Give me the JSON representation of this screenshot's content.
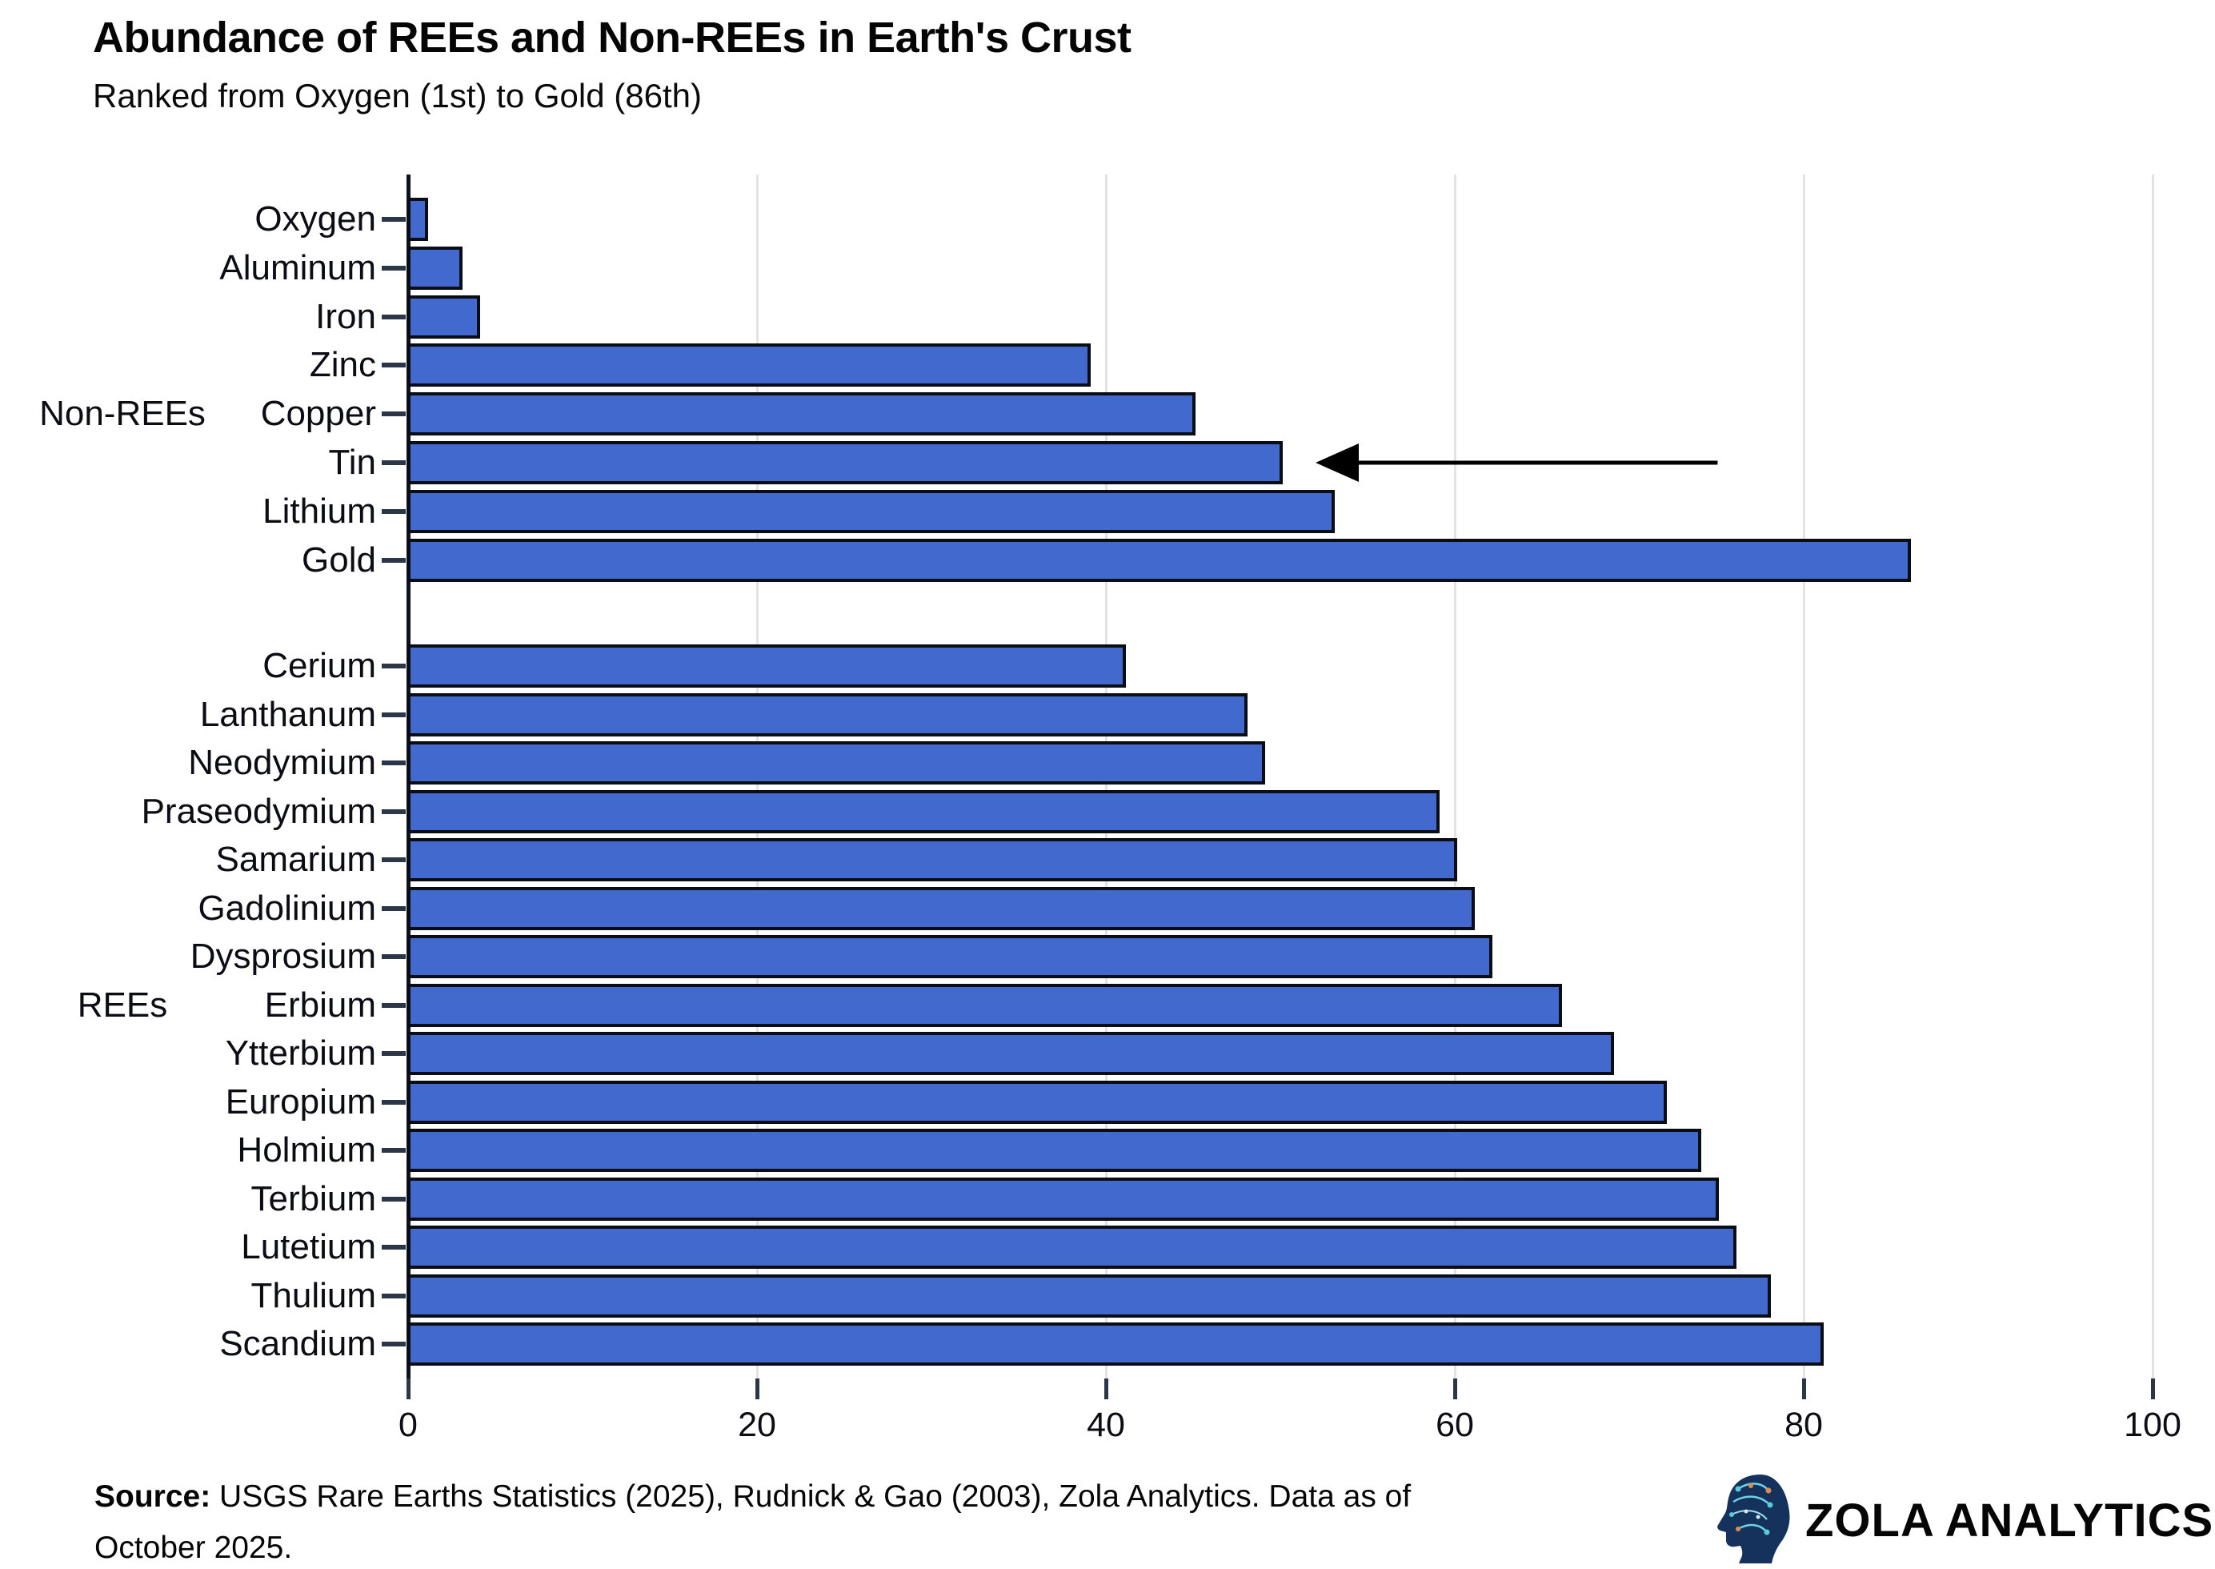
{
  "chart_data": {
    "type": "bar",
    "orientation": "horizontal",
    "title": "Abundance of REEs and Non-REEs in Earth's Crust",
    "subtitle": "Ranked from Oxygen (1st) to Gold (86th)",
    "xlabel": "",
    "ylabel": "",
    "xlim": [
      0,
      100
    ],
    "x_ticks": [
      0,
      20,
      40,
      60,
      80,
      100
    ],
    "grid": "vertical-light-gray",
    "legend": "none",
    "bar_color": "#4169ce",
    "bar_edge_color": "#0a0d14",
    "grid_color": "#e3e3e3",
    "axis_color": "#2b3648",
    "groups": [
      {
        "label": "Non-REEs",
        "categories": [
          "Oxygen",
          "Aluminum",
          "Iron",
          "Zinc",
          "Copper",
          "Tin",
          "Lithium",
          "Gold"
        ],
        "values": [
          1,
          3,
          4,
          39,
          45,
          50,
          53,
          86
        ]
      },
      {
        "label": "REEs",
        "categories": [
          "Cerium",
          "Lanthanum",
          "Neodymium",
          "Praseodymium",
          "Samarium",
          "Gadolinium",
          "Dysprosium",
          "Erbium",
          "Ytterbium",
          "Europium",
          "Holmium",
          "Terbium",
          "Lutetium",
          "Thulium",
          "Scandium"
        ],
        "values": [
          41,
          48,
          49,
          59,
          60,
          61,
          62,
          66,
          69,
          72,
          74,
          75,
          76,
          78,
          81
        ]
      }
    ],
    "annotation": {
      "type": "arrow",
      "points_to": "Tin",
      "from_value": 75,
      "to_value": 52
    }
  },
  "source": {
    "bold_label": "Source:",
    "line1_rest": " USGS Rare Earths Statistics (2025), Rudnick & Gao (2003), Zola Analytics. Data as of",
    "line2": "October 2025."
  },
  "branding": {
    "icon": "circuit-head-icon",
    "name": "ZOLA ANALYTICS"
  }
}
